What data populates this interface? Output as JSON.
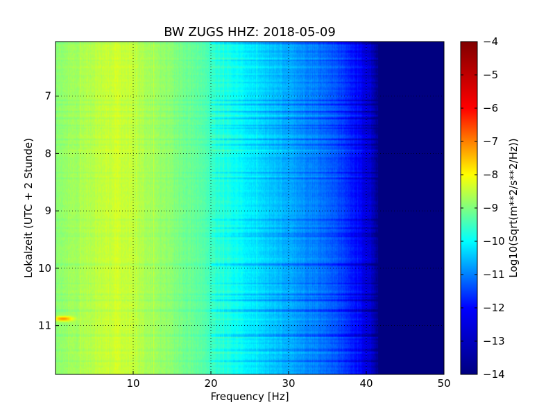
{
  "chart_data": {
    "type": "heatmap",
    "title": "BW ZUGS HHZ: 2018-05-09",
    "xlabel": "Frequency [Hz]",
    "ylabel": "Lokalzeit (UTC + 2 Stunde)",
    "xlim": [
      0,
      50
    ],
    "ylim": [
      6.05,
      11.85
    ],
    "y_inverted": true,
    "xticks": [
      10,
      20,
      30,
      40,
      50
    ],
    "yticks": [
      7,
      8,
      9,
      10,
      11
    ],
    "grid": true,
    "colormap": "jet",
    "colorbar": {
      "label": "Log10(Sqrt(m**2/s**2/Hz))",
      "min": -14,
      "max": -4,
      "ticks": [
        -4,
        -5,
        -6,
        -7,
        -8,
        -9,
        -10,
        -11,
        -12,
        -13,
        -14
      ]
    },
    "frequency_profile": {
      "x": [
        0,
        2,
        5,
        8,
        10,
        13,
        16,
        19,
        21,
        23,
        25,
        27,
        29,
        31,
        33,
        35,
        36.5,
        38,
        39,
        40.5,
        41.5,
        50
      ],
      "values": [
        -8.9,
        -8.7,
        -8.4,
        -8.2,
        -8.4,
        -8.7,
        -9.0,
        -9.4,
        -9.8,
        -10.1,
        -10.4,
        -10.7,
        -10.9,
        -11.2,
        -11.4,
        -11.7,
        -12.0,
        -12.4,
        -12.7,
        -13.2,
        -13.8,
        -14.0
      ]
    },
    "hotspot": {
      "time": 10.88,
      "frequency": 1.0,
      "value": -6.6
    }
  },
  "colors": {
    "jet_stops": [
      "#000080",
      "#0000ff",
      "#00ffff",
      "#ffff00",
      "#ff0000",
      "#800000"
    ]
  }
}
